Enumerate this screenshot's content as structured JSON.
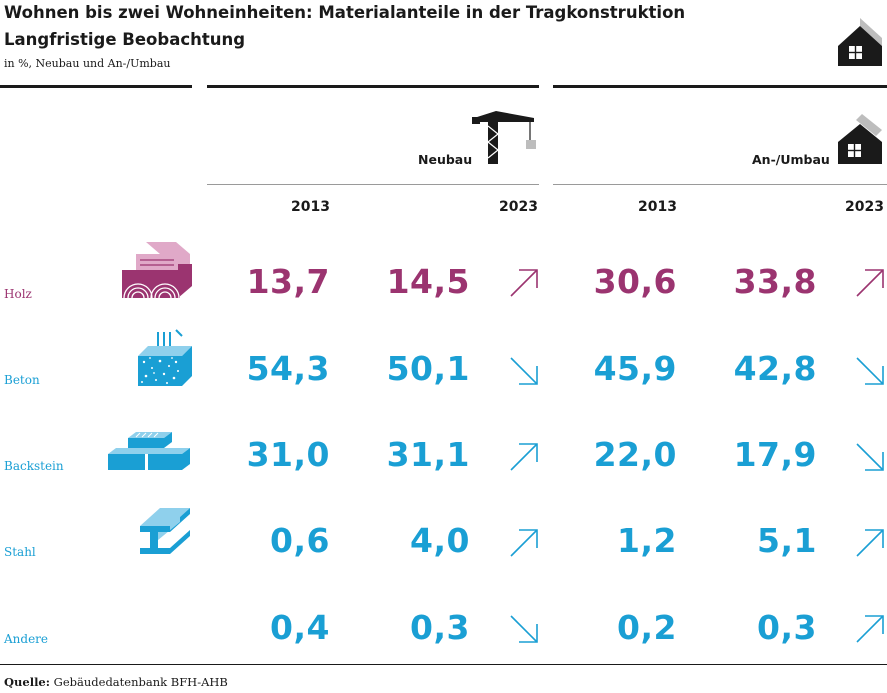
{
  "chart_data": {
    "type": "table",
    "title": "Wohnen bis zwei Wohneinheiten: Materialanteile in der Tragkonstruktion",
    "subtitle": "Langfristige Beobachtung",
    "unit_note": "in %, Neubau und An-/Umbau",
    "column_groups": [
      {
        "name": "Neubau",
        "icon": "crane-icon",
        "years": [
          "2013",
          "2023"
        ]
      },
      {
        "name": "An-/Umbau",
        "icon": "house-renovation-icon",
        "years": [
          "2013",
          "2023"
        ]
      }
    ],
    "rows": [
      {
        "label": "Holz",
        "icon": "wood-icon",
        "color": "#9b3470",
        "neubau": [
          "13,7",
          "14,5"
        ],
        "neubau_trend": "up",
        "umbau": [
          "30,6",
          "33,8"
        ],
        "umbau_trend": "up"
      },
      {
        "label": "Beton",
        "icon": "concrete-icon",
        "color": "#1a9fd4",
        "neubau": [
          "54,3",
          "50,1"
        ],
        "neubau_trend": "down",
        "umbau": [
          "45,9",
          "42,8"
        ],
        "umbau_trend": "down"
      },
      {
        "label": "Backstein",
        "icon": "brick-icon",
        "color": "#1a9fd4",
        "neubau": [
          "31,0",
          "31,1"
        ],
        "neubau_trend": "up",
        "umbau": [
          "22,0",
          "17,9"
        ],
        "umbau_trend": "down"
      },
      {
        "label": "Stahl",
        "icon": "steel-beam-icon",
        "color": "#1a9fd4",
        "neubau": [
          "0,6",
          "4,0"
        ],
        "neubau_trend": "up",
        "umbau": [
          "1,2",
          "5,1"
        ],
        "umbau_trend": "up"
      },
      {
        "label": "Andere",
        "icon": "",
        "color": "#1a9fd4",
        "neubau": [
          "0,4",
          "0,3"
        ],
        "neubau_trend": "down",
        "umbau": [
          "0,2",
          "0,3"
        ],
        "umbau_trend": "up"
      }
    ]
  },
  "source": {
    "label": "Quelle:",
    "text": "Gebäudedatenbank BFH-AHB"
  },
  "colors": {
    "holz": "#9b3470",
    "blue": "#1a9fd4",
    "text": "#1a1a1a",
    "rule": "#1a1a1a"
  }
}
